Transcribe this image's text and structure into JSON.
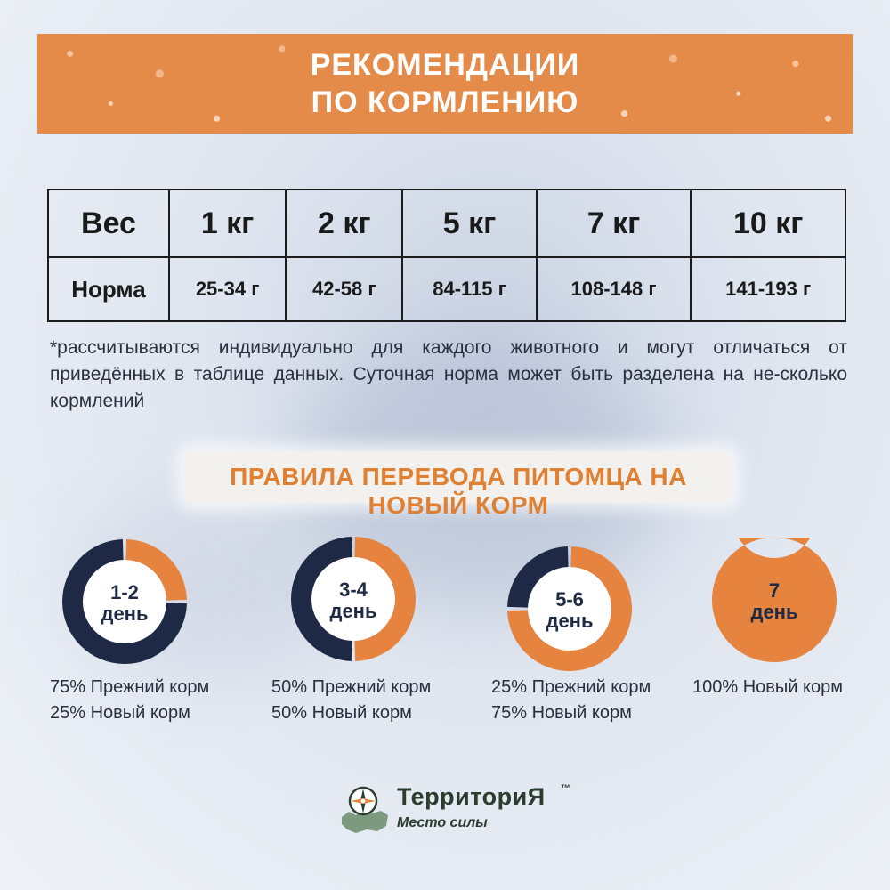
{
  "header": {
    "title_line1": "Рекомендации",
    "title_line2": "по кормлению"
  },
  "table": {
    "row_weight_label": "Вес",
    "row_norm_label": "Норма",
    "weights": [
      "1 кг",
      "2 кг",
      "5 кг",
      "7 кг",
      "10 кг"
    ],
    "norms": [
      "25-34 г",
      "42-58 г",
      "84-115 г",
      "108-148 г",
      "141-193 г"
    ]
  },
  "note": "*рассчитываются индивидуально для каждого животного и могут отличаться от приведённых в таблице данных. Суточная норма может быть разделена на не-сколько кормлений",
  "subheading": "Правила перевода питомца на новый корм",
  "steps": [
    {
      "day_line1": "1-2",
      "day_line2": "день",
      "old_pct": 75,
      "new_pct": 25,
      "caption_old": "75% Прежний корм",
      "caption_new": "25% Новый корм"
    },
    {
      "day_line1": "3-4",
      "day_line2": "день",
      "old_pct": 50,
      "new_pct": 50,
      "caption_old": "50% Прежний корм",
      "caption_new": "50% Новый корм"
    },
    {
      "day_line1": "5-6",
      "day_line2": "день",
      "old_pct": 25,
      "new_pct": 75,
      "caption_old": "25% Прежний корм",
      "caption_new": "75% Новый корм"
    },
    {
      "day_line1": "7",
      "day_line2": "день",
      "old_pct": 0,
      "new_pct": 100,
      "caption_old": "100% Новый корм",
      "caption_new": ""
    }
  ],
  "colors": {
    "orange": "#e5833f",
    "navy": "#1e2a45",
    "banner": "#e58b4a"
  },
  "logo": {
    "name": "ТерриториЯ",
    "tm": "™",
    "tagline": "Место силы",
    "icon": "compass-map-icon"
  }
}
